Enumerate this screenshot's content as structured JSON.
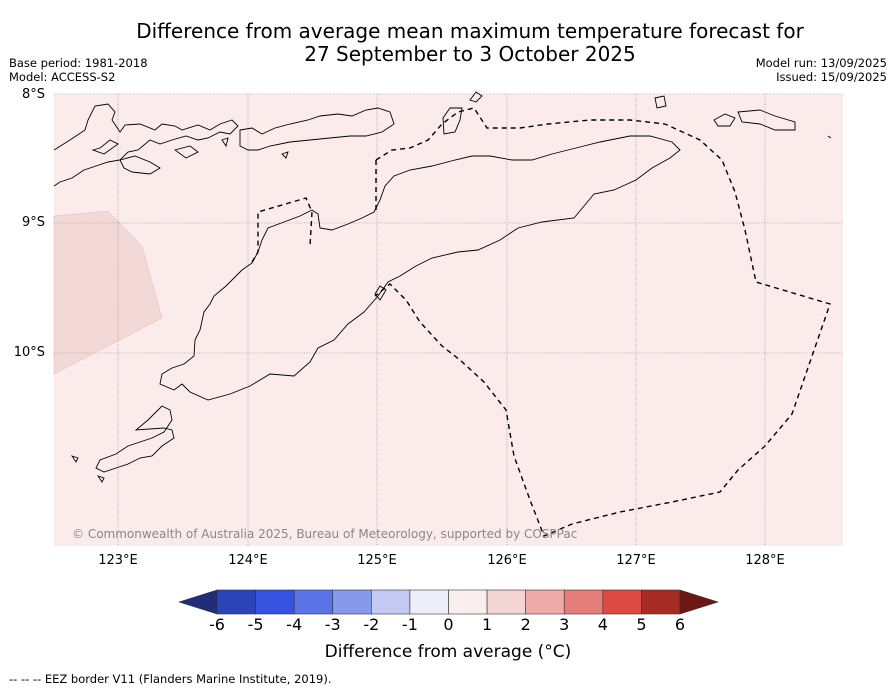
{
  "title_line1": "Difference from average mean maximum temperature forecast for",
  "title_line2": "27 September to 3 October 2025",
  "base_period": "Base period: 1981-2018",
  "model": "Model: ACCESS-S2",
  "model_run": "Model run: 13/09/2025",
  "issued": "Issued: 15/09/2025",
  "lat_labels": [
    "8°S",
    "9°S",
    "10°S"
  ],
  "lon_labels": [
    "123°E",
    "124°E",
    "125°E",
    "126°E",
    "127°E",
    "128°E"
  ],
  "copyright": "© Commonwealth of Australia 2025, Bureau of Meteorology, supported by COSPPac",
  "colorbar": {
    "ticks": [
      "-6",
      "-5",
      "-4",
      "-3",
      "-2",
      "-1",
      "0",
      "1",
      "2",
      "3",
      "4",
      "5",
      "6"
    ],
    "colors": [
      "#1f2d7a",
      "#2a44b8",
      "#3552e0",
      "#5a73e6",
      "#8799ea",
      "#c2c9f2",
      "#eceefa",
      "#fbeeee",
      "#f3d5d3",
      "#edaaa6",
      "#e57e78",
      "#dc4a42",
      "#a62c24",
      "#6e1813"
    ],
    "label": "Difference from average (°C)"
  },
  "map_fill_color": "#fbeceb",
  "anomaly_patch_color": "#f2d8d6",
  "footnote": "--  --  -- EEZ border V11 (Flanders Marine Institute, 2019)."
}
